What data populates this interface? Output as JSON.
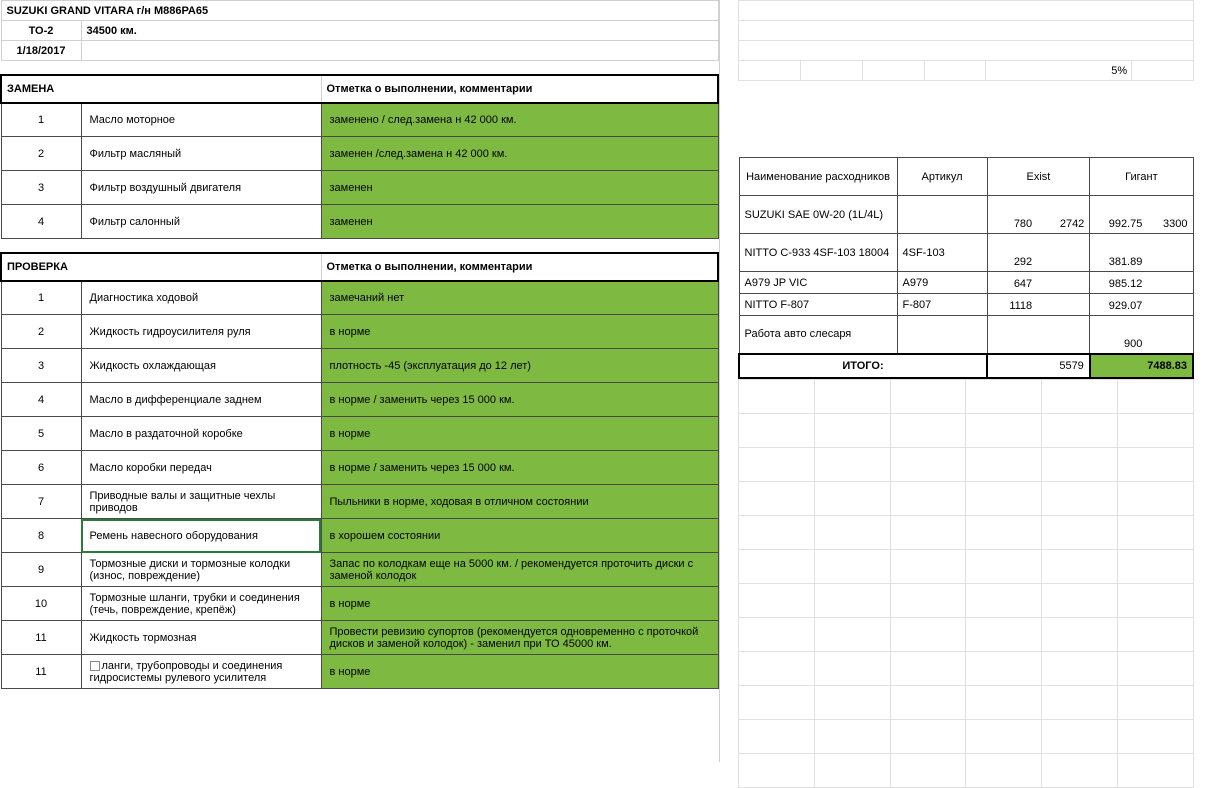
{
  "header": {
    "title": "SUZUKI GRAND VITARA г/н М886РА65",
    "to_label": "ТО-2",
    "mileage": "34500 км.",
    "date": "1/18/2017"
  },
  "sections": {
    "replace": {
      "title": "ЗАМЕНА",
      "comment_header": "Отметка о выполнении, комментарии",
      "rows": [
        {
          "num": "1",
          "name": "Масло моторное",
          "comment": "заменено / след.замена н 42 000 км."
        },
        {
          "num": "2",
          "name": "Фильтр масляный",
          "comment": "заменен /след.замена н 42 000 км."
        },
        {
          "num": "3",
          "name": "Фильтр воздушный двигателя",
          "comment": "заменен"
        },
        {
          "num": "4",
          "name": "Фильтр салонный",
          "comment": "заменен"
        }
      ]
    },
    "check": {
      "title": "ПРОВЕРКА",
      "comment_header": "Отметка о выполнении, комментарии",
      "rows": [
        {
          "num": "1",
          "name": "Диагностика ходовой",
          "comment": "замечаний нет"
        },
        {
          "num": "2",
          "name": "Жидкость гидроусилителя руля",
          "comment": "в норме"
        },
        {
          "num": "3",
          "name": "Жидкость охлаждающая",
          "comment": "плотность -45 (эксплуатация до 12 лет)"
        },
        {
          "num": "4",
          "name": "Масло в дифференциале заднем",
          "comment": "в норме / заменить через 15 000 км."
        },
        {
          "num": "5",
          "name": "Масло в раздаточной коробке",
          "comment": "в норме"
        },
        {
          "num": "6",
          "name": "Масло коробки передач",
          "comment": "в норме / заменить через 15 000 км."
        },
        {
          "num": "7",
          "name": "Приводные валы и защитные чехлы приводов",
          "comment": "Пыльники в норме, ходовая в отличном состоянии"
        },
        {
          "num": "8",
          "name": "Ремень навесного оборудования",
          "comment": "в хорошем состоянии"
        },
        {
          "num": "9",
          "name": "Тормозные диски и тормозные колодки (износ, повреждение)",
          "comment": "Запас по колодкам еще на 5000 км. / рекомендуется проточить диски с заменой колодок"
        },
        {
          "num": "10",
          "name": "Тормозные шланги, трубки и соединения (течь, повреждение, крепёж)",
          "comment": "в норме"
        },
        {
          "num": "11",
          "name": "Жидкость тормозная",
          "comment": "Провести ревизию супортов (рекомендуется одновременно с проточкой дисков и заменой колодок) - заменил при ТО 45000 км."
        },
        {
          "num": "11",
          "name": "ланги, трубопроводы и соединения гидросистемы рулевого усилителя",
          "comment": "в норме",
          "has_icon": true
        }
      ]
    }
  },
  "pricing": {
    "percent": "5%",
    "headers": {
      "name": "Наименование расходников",
      "article": "Артикул",
      "exist": "Exist",
      "gigant": "Гигант"
    },
    "rows": [
      {
        "name": "SUZUKI SAE 0W-20 (1L/4L)",
        "article": "",
        "exist1": "780",
        "exist2": "2742",
        "gigant1": "992.75",
        "gigant2": "3300"
      },
      {
        "name": "NITTO C-933 4SF-103 18004",
        "article": "4SF-103",
        "exist1": "292",
        "exist2": "",
        "gigant1": "381.89",
        "gigant2": ""
      },
      {
        "name": "A979 JP VIC",
        "article": "A979",
        "exist1": "647",
        "exist2": "",
        "gigant1": "985.12",
        "gigant2": ""
      },
      {
        "name": "NITTO F-807",
        "article": "F-807",
        "exist1": "1118",
        "exist2": "",
        "gigant1": "929.07",
        "gigant2": ""
      },
      {
        "name": "Работа авто слесаря",
        "article": "",
        "exist1": "",
        "exist2": "",
        "gigant1": "900",
        "gigant2": ""
      }
    ],
    "total_label": "ИТОГО:",
    "total_exist": "5579",
    "total_gigant": "7488.83"
  },
  "colors": {
    "green": "#7eba41",
    "border_dark": "#4a4a4a",
    "border_light": "#d0d0d0",
    "grid": "#e0e0e0",
    "background": "#ffffff"
  }
}
